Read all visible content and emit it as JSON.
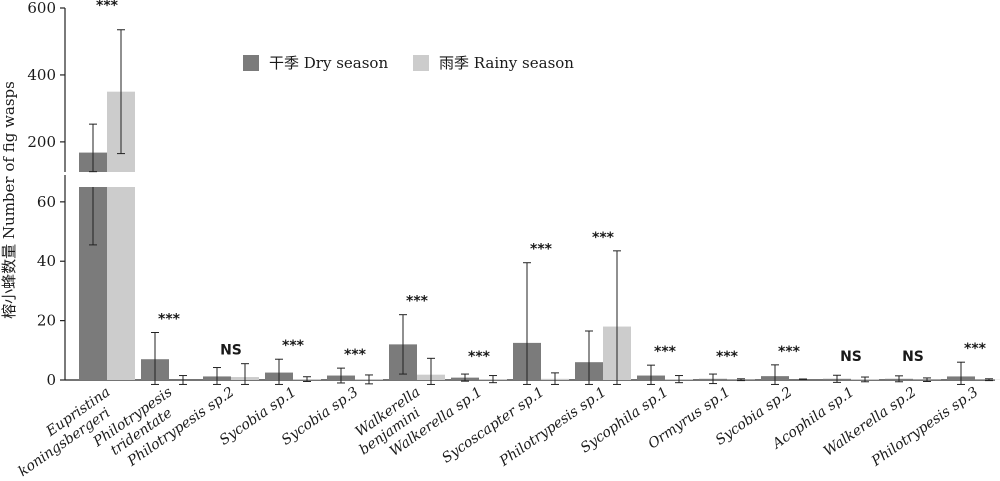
{
  "chart_data": {
    "type": "bar",
    "ylabel": "榕小蜂数量 Number of fig wasps",
    "axis_break": {
      "lower_range": [
        0,
        65
      ],
      "upper_range": [
        110,
        600
      ]
    },
    "lower_yticks": [
      0,
      20,
      40,
      60
    ],
    "upper_yticks": [
      200,
      400,
      600
    ],
    "legend_position": "top-center",
    "categories": [
      {
        "lines": [
          "Eupristina",
          "koningsbergeri"
        ],
        "dry": 168,
        "dry_err": 85,
        "rainy": 350,
        "rainy_err": 185,
        "sig": "***"
      },
      {
        "lines": [
          "Philotrypesis",
          "tridentate"
        ],
        "dry": 7,
        "dry_err": 9,
        "rainy": 0,
        "rainy_err": 1.5,
        "sig": "***"
      },
      {
        "lines": [
          "Philotrypesis sp.2"
        ],
        "dry": 1.2,
        "dry_err": 3,
        "rainy": 1,
        "rainy_err": 4.5,
        "sig": "NS"
      },
      {
        "lines": [
          "Sycobia sp.1"
        ],
        "dry": 2.5,
        "dry_err": 4.5,
        "rainy": 0.3,
        "rainy_err": 0.8,
        "sig": "***"
      },
      {
        "lines": [
          "Sycobia sp.3"
        ],
        "dry": 1.5,
        "dry_err": 2.5,
        "rainy": 0.2,
        "rainy_err": 1.5,
        "sig": "***"
      },
      {
        "lines": [
          "Walkerella",
          "benjamini"
        ],
        "dry": 12,
        "dry_err": 10,
        "rainy": 1.8,
        "rainy_err": 5.5,
        "sig": "***"
      },
      {
        "lines": [
          "Walkerella sp.1"
        ],
        "dry": 0.8,
        "dry_err": 1.2,
        "rainy": 0.3,
        "rainy_err": 1.2,
        "sig": "***"
      },
      {
        "lines": [
          "Sycoscapter sp.1"
        ],
        "dry": 12.5,
        "dry_err": 27,
        "rainy": 0.4,
        "rainy_err": 2,
        "sig": "***"
      },
      {
        "lines": [
          "Philotrypesis sp.1"
        ],
        "dry": 6,
        "dry_err": 10.5,
        "rainy": 18,
        "rainy_err": 25.5,
        "sig": "***"
      },
      {
        "lines": [
          "Sycophila sp.1"
        ],
        "dry": 1.5,
        "dry_err": 3.5,
        "rainy": 0.3,
        "rainy_err": 1.2,
        "sig": "***"
      },
      {
        "lines": [
          "Ormyrus sp.1"
        ],
        "dry": 0.4,
        "dry_err": 1.6,
        "rainy": 0.1,
        "rainy_err": 0.3,
        "sig": "***"
      },
      {
        "lines": [
          "Sycobia sp.2"
        ],
        "dry": 1.3,
        "dry_err": 3.8,
        "rainy": 0,
        "rainy_err": 0,
        "sig": "***"
      },
      {
        "lines": [
          "Acophila sp.1"
        ],
        "dry": 0.4,
        "dry_err": 1.2,
        "rainy": 0.2,
        "rainy_err": 0.8,
        "sig": "NS"
      },
      {
        "lines": [
          "Walkerella sp.2"
        ],
        "dry": 0.4,
        "dry_err": 1.0,
        "rainy": 0.1,
        "rainy_err": 0.6,
        "sig": "NS"
      },
      {
        "lines": [
          "Philotrypesis sp.3"
        ],
        "dry": 1.2,
        "dry_err": 4.8,
        "rainy": 0.1,
        "rainy_err": 0.3,
        "sig": "***"
      }
    ],
    "series": [
      {
        "name": "干季 Dry season",
        "color": "#7b7b7b"
      },
      {
        "name": "雨季 Rainy season",
        "color": "#cccccc"
      }
    ]
  }
}
